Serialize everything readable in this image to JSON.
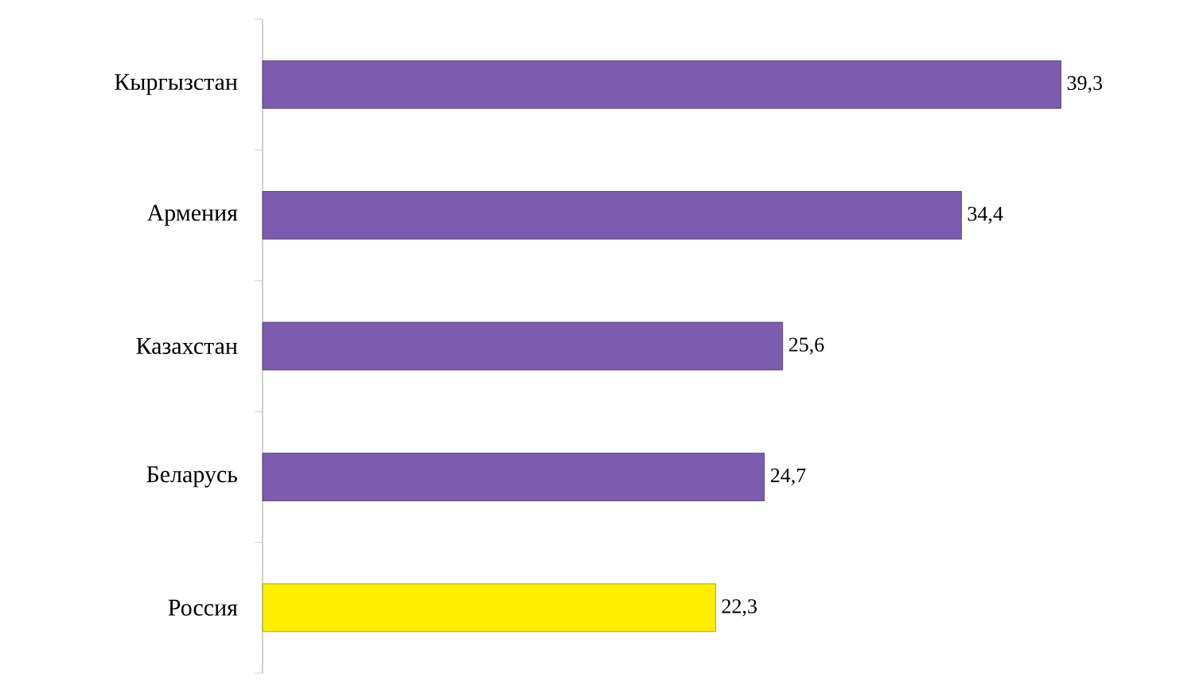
{
  "chart_data": {
    "type": "bar",
    "orientation": "horizontal",
    "categories": [
      "Кыргызстан",
      "Армения",
      "Казахстан",
      "Беларусь",
      "Россия"
    ],
    "values": [
      39.3,
      34.4,
      25.6,
      24.7,
      22.3
    ],
    "value_labels": [
      "39,3",
      "34,4",
      "25,6",
      "24,7",
      "22,3"
    ],
    "colors": [
      "#7b5cae",
      "#7b5cae",
      "#7b5cae",
      "#7b5cae",
      "#ffee00"
    ]
  }
}
